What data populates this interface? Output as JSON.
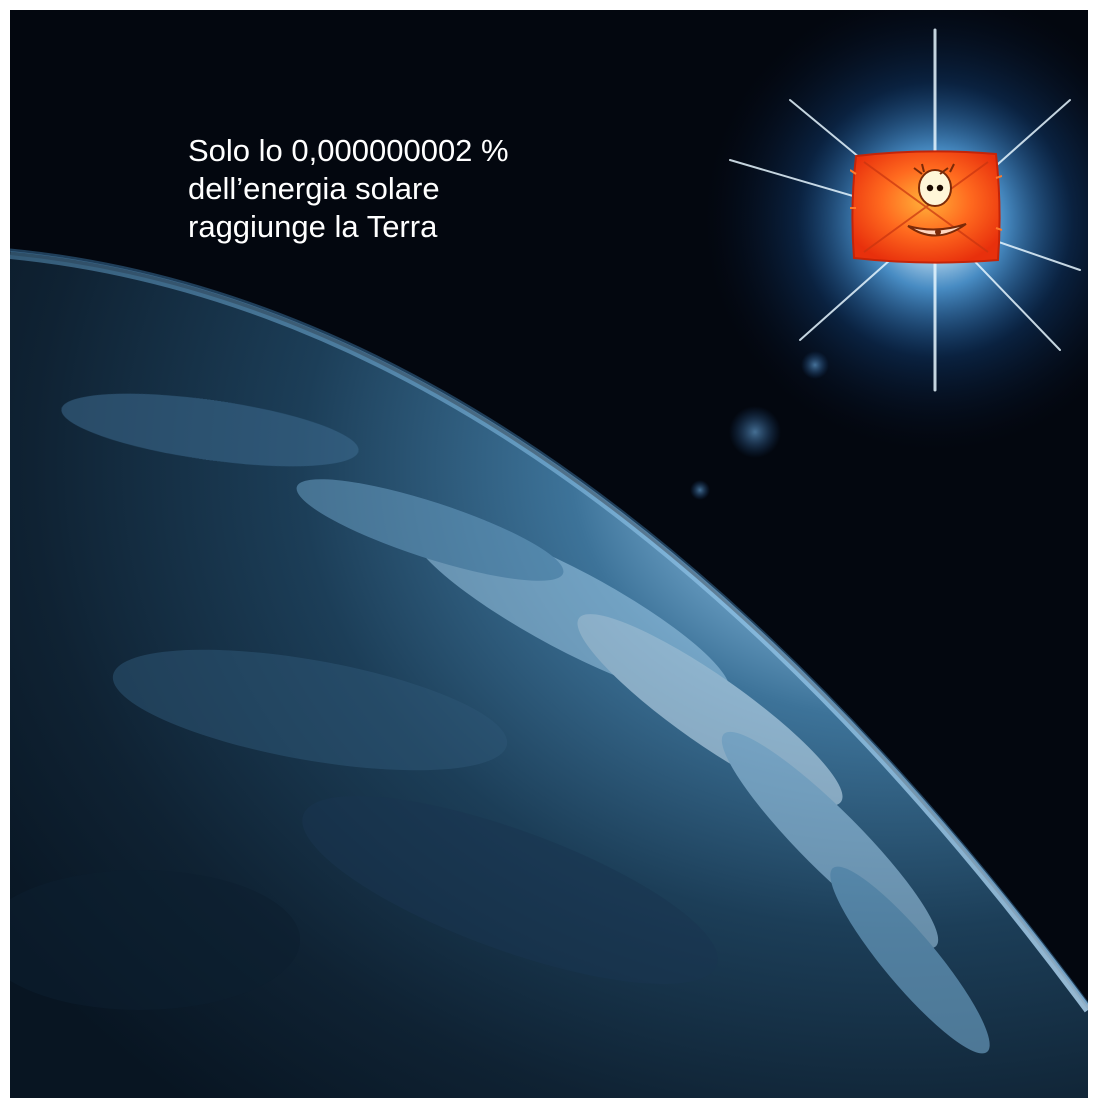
{
  "caption": {
    "line1": "Solo lo 0,000000002 %",
    "line2": "dell’energia solare",
    "line3": "raggiunge la Terra"
  },
  "scene": {
    "space_color": "#03070f",
    "earth_color": "#1d3f5c",
    "glow_color": "#4fa8ff",
    "mascot_color": "#ff4a1a"
  }
}
